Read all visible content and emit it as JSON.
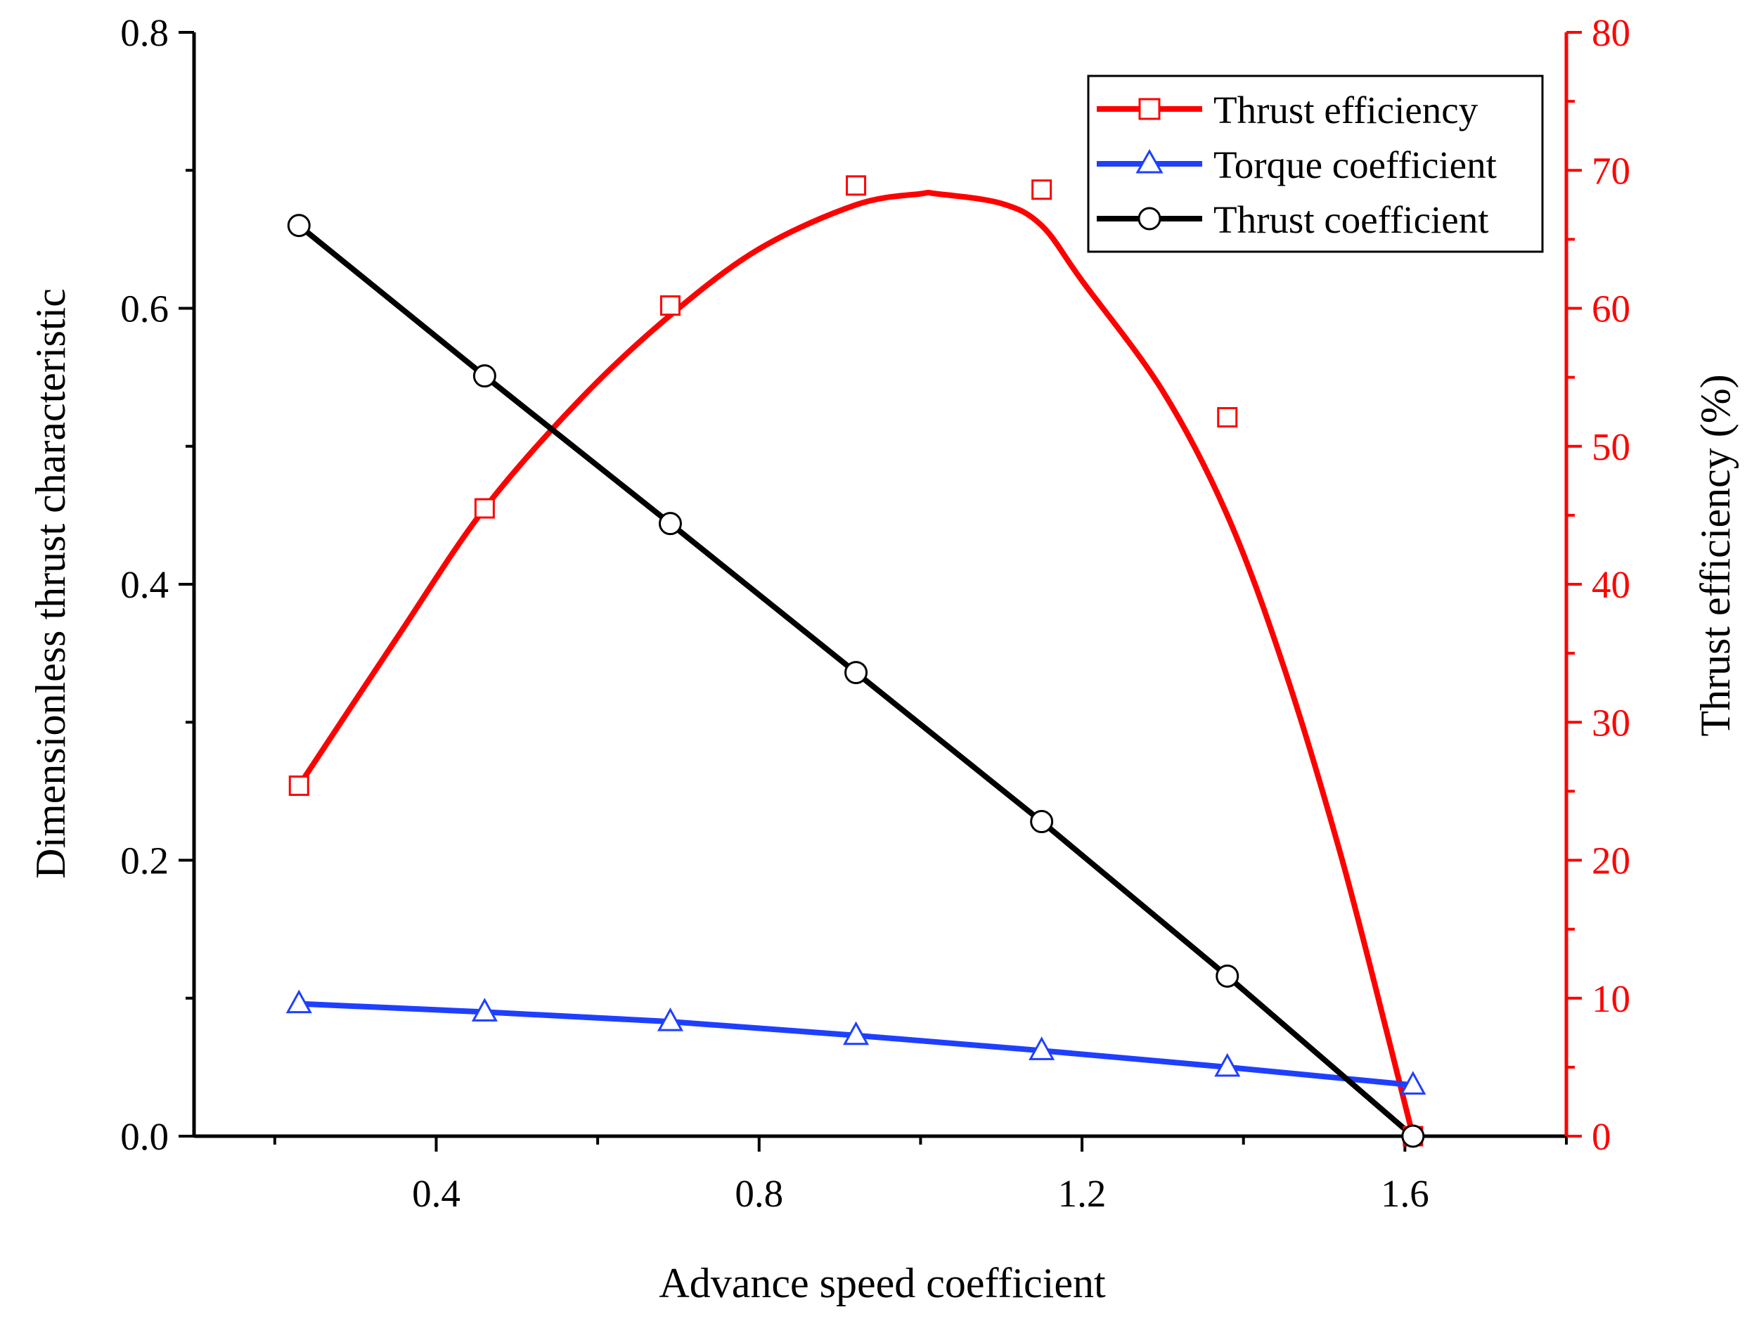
{
  "colors": {
    "axis": "#000000",
    "efficiency": "#ff0000",
    "torque": "#1f3fff",
    "thrust": "#000000",
    "right_axis": "#ff0000"
  },
  "chart_data": {
    "type": "line",
    "title": "",
    "xlabel": "Advance speed coefficient",
    "ylabel": "Dimensionless thrust characteristic",
    "y2label": "Thrust efficiency (%)",
    "xlim": [
      0.1,
      1.8
    ],
    "ylim": [
      0,
      0.8
    ],
    "y2lim": [
      0,
      80
    ],
    "x_ticks": [
      0.4,
      0.8,
      1.2,
      1.6
    ],
    "x_tick_labels": [
      "0.4",
      "0.8",
      "1.2",
      "1.6"
    ],
    "x_minor_ticks": [
      0.2,
      0.6,
      1.0,
      1.4,
      1.8
    ],
    "y_ticks": [
      0.0,
      0.2,
      0.4,
      0.6,
      0.8
    ],
    "y_tick_labels": [
      "0.0",
      "0.2",
      "0.4",
      "0.6",
      "0.8"
    ],
    "y_minor_ticks": [
      0.1,
      0.3,
      0.5,
      0.7
    ],
    "y2_ticks": [
      0,
      10,
      20,
      30,
      40,
      50,
      60,
      70,
      80
    ],
    "y2_tick_labels": [
      "0",
      "10",
      "20",
      "30",
      "40",
      "50",
      "60",
      "70",
      "80"
    ],
    "y2_minor_ticks": [
      5,
      15,
      25,
      35,
      45,
      55,
      65,
      75
    ],
    "legend_position": "top-right",
    "series": [
      {
        "name": "Thrust efficiency",
        "axis": "right",
        "marker": "square",
        "color": "#ff0000",
        "x": [
          0.23,
          0.46,
          0.69,
          0.92,
          1.15,
          1.38,
          1.61
        ],
        "values": [
          25.4,
          45.5,
          60.2,
          68.9,
          68.6,
          52.1,
          0.0
        ],
        "fit_curve": {
          "x": [
            0.23,
            0.35,
            0.46,
            0.58,
            0.69,
            0.8,
            0.92,
            1.0,
            1.02,
            1.1,
            1.15,
            1.2,
            1.3,
            1.38,
            1.45,
            1.52,
            1.58,
            1.61
          ],
          "values": [
            25.4,
            36.0,
            45.5,
            53.5,
            59.5,
            64.3,
            67.5,
            68.3,
            68.3,
            67.6,
            66.0,
            62.0,
            54.0,
            45.0,
            34.0,
            20.5,
            7.0,
            0.0
          ]
        }
      },
      {
        "name": "Torque coefficient",
        "axis": "left",
        "marker": "triangle",
        "color": "#1f3fff",
        "x": [
          0.23,
          0.46,
          0.69,
          0.92,
          1.15,
          1.38,
          1.61
        ],
        "values": [
          0.096,
          0.09,
          0.083,
          0.073,
          0.062,
          0.05,
          0.037
        ]
      },
      {
        "name": "Thrust coefficient",
        "axis": "left",
        "marker": "circle",
        "color": "#000000",
        "x": [
          0.23,
          0.46,
          0.69,
          0.92,
          1.15,
          1.38,
          1.61
        ],
        "values": [
          0.66,
          0.551,
          0.444,
          0.336,
          0.228,
          0.116,
          0.0
        ]
      }
    ]
  }
}
